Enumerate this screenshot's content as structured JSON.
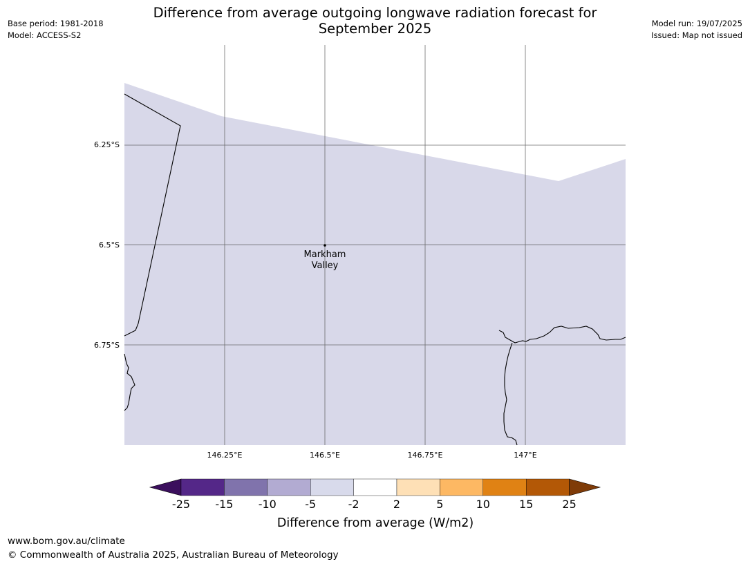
{
  "header": {
    "title_line1": "Difference from average outgoing longwave radiation forecast for",
    "title_line2": "September 2025",
    "base_period": "Base period: 1981-2018",
    "model": "Model: ACCESS-S2",
    "model_run": "Model run: 19/07/2025",
    "issued": "Issued: Map not issued"
  },
  "map": {
    "lon_ticks": [
      "146.25°E",
      "146.5°E",
      "146.75°E",
      "147°E"
    ],
    "lat_ticks": [
      "6.25°S",
      "6.5°S",
      "6.75°S"
    ],
    "place": {
      "name_line1": "Markham",
      "name_line2": "Valley"
    },
    "colors": {
      "anomaly_fill": "#d8d8e9",
      "grid": "#555555",
      "coast": "#000000"
    },
    "shaded_category": "-5 to -2"
  },
  "legend": {
    "title": "Difference from average (W/m2)",
    "tick_labels": [
      "-25",
      "-15",
      "-10",
      "-5",
      "-2",
      "2",
      "5",
      "10",
      "15",
      "25"
    ],
    "low_extend_color": "#3b0f5d",
    "high_extend_color": "#7f3b08",
    "bin_colors": [
      "#542788",
      "#8073ac",
      "#b2abd2",
      "#d8daeb",
      "#ffffff",
      "#fee0b6",
      "#fdb863",
      "#e08214",
      "#b35806"
    ]
  },
  "footer": {
    "website": "www.bom.gov.au/climate",
    "copyright": "© Commonwealth of Australia 2025, Australian Bureau of Meteorology"
  }
}
